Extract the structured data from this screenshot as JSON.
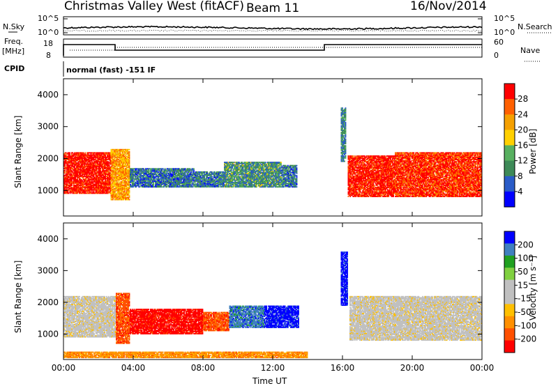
{
  "header": {
    "station": "Christmas Valley West (fitACF)",
    "beam": "Beam 11",
    "date": "16/Nov/2014"
  },
  "noise_panel": {
    "left_label": "N.Sky",
    "right_label": "N.Search",
    "left_ticks": [
      "10^5",
      "10^0"
    ],
    "right_ticks": [
      "10^5",
      "10^0"
    ]
  },
  "freq_panel": {
    "left_label_1": "Freq.",
    "left_label_2": "[MHz]",
    "left_ticks": [
      "18",
      "8"
    ],
    "right_label": "Nave",
    "right_ticks": [
      "60",
      "0"
    ]
  },
  "cpid": {
    "label": "CPID",
    "mode": "normal (fast) -151 IF"
  },
  "colors": {
    "power_scale": [
      "#0000ff",
      "#2a5cc8",
      "#3e8a58",
      "#58b060",
      "#ffd000",
      "#f5a000",
      "#ff6000",
      "#ff0000"
    ],
    "velocity_scale": [
      "#ff0000",
      "#ff5000",
      "#ff9000",
      "#ffc000",
      "#c0c0c0",
      "#c0c0c0",
      "#80d040",
      "#20a020",
      "#4080c0",
      "#0000ff"
    ]
  },
  "chart_data": [
    {
      "type": "heatmap",
      "title": "",
      "quantity": "Power",
      "xlabel": "",
      "ylabel": "Slant Range [km]",
      "ylim": [
        200,
        4500
      ],
      "xlim": [
        0,
        24
      ],
      "y_ticks": [
        1000,
        2000,
        3000,
        4000
      ],
      "colorbar_label": "Power [dB]",
      "colorbar_ticks": [
        "4",
        "8",
        "12",
        "16",
        "20",
        "24",
        "28"
      ],
      "regions": [
        {
          "t0": 0.0,
          "t1": 2.7,
          "r0": 900,
          "r1": 2200,
          "level": 29
        },
        {
          "t0": 2.7,
          "t1": 3.8,
          "r0": 700,
          "r1": 2300,
          "level": 20
        },
        {
          "t0": 3.8,
          "t1": 7.5,
          "r0": 1100,
          "r1": 1700,
          "level": 6
        },
        {
          "t0": 7.5,
          "t1": 9.2,
          "r0": 1100,
          "r1": 1600,
          "level": 7
        },
        {
          "t0": 9.2,
          "t1": 12.5,
          "r0": 1100,
          "r1": 1900,
          "level": 9
        },
        {
          "t0": 12.5,
          "t1": 13.4,
          "r0": 1100,
          "r1": 1800,
          "level": 6
        },
        {
          "t0": 15.9,
          "t1": 16.2,
          "r0": 1900,
          "r1": 3600,
          "level": 8
        },
        {
          "t0": 16.3,
          "t1": 19.0,
          "r0": 800,
          "r1": 2100,
          "level": 28
        },
        {
          "t0": 19.0,
          "t1": 24.0,
          "r0": 800,
          "r1": 2200,
          "level": 27
        }
      ]
    },
    {
      "type": "heatmap",
      "title": "",
      "quantity": "Velocity",
      "xlabel": "Time UT",
      "ylabel": "Slant Range [km]",
      "ylim": [
        200,
        4500
      ],
      "xlim": [
        0,
        24
      ],
      "x_ticks": [
        "00:00",
        "04:00",
        "08:00",
        "12:00",
        "16:00",
        "20:00",
        "00:00"
      ],
      "y_ticks": [
        1000,
        2000,
        3000,
        4000
      ],
      "colorbar_label": "Velocity [m s⁻¹]",
      "colorbar_ticks": [
        "200",
        "100",
        "50",
        "15",
        "-15",
        "-50",
        "-100",
        "-200"
      ],
      "regions": [
        {
          "t0": 0.0,
          "t1": 3.0,
          "r0": 900,
          "r1": 2200,
          "velocity": 0
        },
        {
          "t0": 3.0,
          "t1": 3.8,
          "r0": 700,
          "r1": 2300,
          "velocity": -80
        },
        {
          "t0": 3.8,
          "t1": 8.0,
          "r0": 1000,
          "r1": 1800,
          "velocity": -200
        },
        {
          "t0": 8.0,
          "t1": 9.5,
          "r0": 1100,
          "r1": 1700,
          "velocity": -120
        },
        {
          "t0": 9.5,
          "t1": 11.5,
          "r0": 1200,
          "r1": 1900,
          "velocity": 150
        },
        {
          "t0": 11.5,
          "t1": 13.5,
          "r0": 1200,
          "r1": 1900,
          "velocity": 200
        },
        {
          "t0": 15.9,
          "t1": 16.3,
          "r0": 1900,
          "r1": 3600,
          "velocity": 200
        },
        {
          "t0": 16.4,
          "t1": 24.0,
          "r0": 800,
          "r1": 2200,
          "velocity": 0
        },
        {
          "t0": 0.0,
          "t1": 14.0,
          "r0": 250,
          "r1": 450,
          "velocity": -70
        }
      ]
    }
  ]
}
